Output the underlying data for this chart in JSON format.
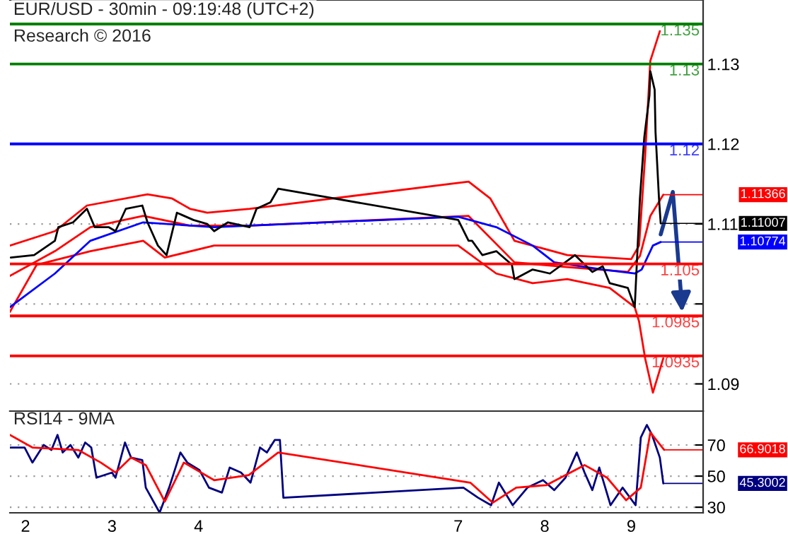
{
  "chart_data": [
    {
      "type": "line",
      "title": "EUR/USD - 30min - 09:19:48 (UTC+2)",
      "annotations": [
        "Research © 2016"
      ],
      "xlim": [
        1.82,
        9.83
      ],
      "xticks": [
        2,
        3,
        4,
        7,
        8,
        9
      ],
      "ylim": [
        1.0866,
        1.138
      ],
      "yticks": [
        1.09,
        {
          "value": 1.1,
          "label": null
        },
        1.11,
        1.12,
        1.13
      ],
      "grid": "y",
      "tick_labels": "y",
      "series": [
        {
          "color": "#ff0000",
          "x": [
            1.82,
            2.34,
            2.71,
            3.41,
            3.69,
            3.9,
            4.1,
            4.59,
            7.12,
            7.37,
            7.65,
            8.26,
            9.0,
            9.09,
            9.16,
            9.22,
            9.33
          ],
          "values": [
            1.1073,
            1.1091,
            1.1123,
            1.1137,
            1.1132,
            1.1119,
            1.1114,
            1.1119,
            1.1153,
            1.1132,
            1.1079,
            1.1061,
            1.1056,
            1.1073,
            1.1185,
            1.1304,
            1.1341
          ]
        },
        {
          "color": "#ff0000",
          "x": [
            1.82,
            2.13,
            2.75,
            3.36,
            3.61,
            4.18,
            7.0,
            7.44,
            7.86,
            8.26,
            8.75,
            9.04,
            9.09,
            9.16,
            9.25,
            9.37
          ],
          "values": [
            1.099,
            1.1049,
            1.1066,
            1.1079,
            1.1058,
            1.1073,
            1.1073,
            1.1038,
            1.1026,
            1.1031,
            1.102,
            1.0996,
            1.0978,
            1.0932,
            1.0889,
            1.0932
          ]
        },
        {
          "color": "#ff0000",
          "x": [
            1.82,
            2.34,
            2.75,
            3.36,
            3.9,
            4.59,
            7.12,
            7.65,
            8.26,
            8.96,
            9.1,
            9.22,
            9.37
          ],
          "values": [
            1.1035,
            1.1066,
            1.1096,
            1.111,
            1.1098,
            1.1098,
            1.111,
            1.1052,
            1.1046,
            1.104,
            1.106,
            1.111,
            1.11366
          ],
          "value_labels": [
            null,
            null,
            null,
            null,
            null,
            null,
            null,
            null,
            null,
            null,
            null,
            null,
            "1.11366"
          ]
        },
        {
          "color": "#0000ff",
          "x": [
            1.82,
            2.34,
            2.75,
            3.36,
            4.18,
            7.0,
            7.44,
            7.86,
            8.11,
            8.67,
            9.04,
            9.12,
            9.25,
            9.34
          ],
          "values": [
            1.0996,
            1.1038,
            1.1079,
            1.1102,
            1.1096,
            1.1109,
            1.1096,
            1.1073,
            1.1052,
            1.1043,
            1.1038,
            1.1043,
            1.1073,
            1.10774
          ],
          "value_labels": [
            null,
            null,
            null,
            null,
            null,
            null,
            null,
            null,
            null,
            null,
            null,
            null,
            null,
            "1.10774"
          ]
        },
        {
          "color": "#000000",
          "x": [
            1.83,
            2.1,
            2.34,
            2.38,
            2.55,
            2.71,
            2.8,
            2.96,
            3.04,
            3.16,
            3.35,
            3.41,
            3.53,
            3.63,
            3.75,
            3.94,
            4.1,
            4.18,
            4.34,
            4.59,
            4.67,
            4.83,
            4.92,
            7.0,
            7.12,
            7.16,
            7.28,
            7.44,
            7.62,
            7.65,
            7.86,
            8.06,
            8.35,
            8.55,
            8.67,
            8.75,
            8.96,
            9.04,
            9.1,
            9.15,
            9.21,
            9.22,
            9.27,
            9.28,
            9.32,
            9.34
          ],
          "values": [
            1.1058,
            1.1061,
            1.1079,
            1.1096,
            1.1102,
            1.1119,
            1.1096,
            1.1096,
            1.1091,
            1.1119,
            1.1123,
            1.1102,
            1.1073,
            1.1061,
            1.1114,
            1.1105,
            1.11,
            1.1091,
            1.1102,
            1.1096,
            1.1119,
            1.1127,
            1.1144,
            1.1105,
            1.1079,
            1.1079,
            1.1061,
            1.1066,
            1.1049,
            1.1031,
            1.1043,
            1.1038,
            1.1061,
            1.104,
            1.1047,
            1.1026,
            1.102,
            1.0996,
            1.1132,
            1.1208,
            1.1261,
            1.1291,
            1.1268,
            1.1215,
            1.1132,
            1.11007
          ],
          "value_labels": [
            null,
            null,
            null,
            null,
            null,
            null,
            null,
            null,
            null,
            null,
            null,
            null,
            null,
            null,
            null,
            null,
            null,
            null,
            null,
            null,
            null,
            null,
            null,
            null,
            null,
            null,
            null,
            null,
            null,
            null,
            null,
            null,
            null,
            null,
            null,
            null,
            null,
            null,
            null,
            null,
            null,
            null,
            null,
            null,
            null,
            "1.11007"
          ]
        }
      ],
      "ref_lines": [
        {
          "axis": "y",
          "value": 1.135,
          "label": "1.135",
          "color": "#008000"
        },
        {
          "axis": "y",
          "value": 1.13,
          "label": "1.13",
          "color": "#008000"
        },
        {
          "axis": "y",
          "value": 1.12,
          "label": "1.12",
          "color": "#0000ff"
        },
        {
          "axis": "y",
          "value": 1.105,
          "label": "1.105",
          "color": "#ff0000"
        },
        {
          "axis": "y",
          "value": 1.0985,
          "label": "1.0985",
          "color": "#ff0000"
        },
        {
          "axis": "y",
          "value": 1.0935,
          "label": "1.0935",
          "color": "#ff0000"
        }
      ]
    },
    {
      "type": "line",
      "title": "RSI14 - 9MA",
      "xlim": [
        1.82,
        9.83
      ],
      "xticks": [
        2,
        3,
        4,
        7,
        8,
        9
      ],
      "ylim": [
        26.4,
        91.8
      ],
      "yticks": [
        30,
        50,
        70
      ],
      "grid": "y",
      "series": [
        {
          "color": "#000080",
          "x": [
            1.82,
            1.99,
            2.08,
            2.21,
            2.3,
            2.37,
            2.43,
            2.52,
            2.61,
            2.69,
            2.76,
            2.82,
            3.0,
            3.04,
            3.15,
            3.22,
            3.35,
            3.39,
            3.55,
            3.66,
            3.79,
            3.87,
            4.01,
            4.12,
            4.27,
            4.36,
            4.49,
            4.6,
            4.71,
            4.79,
            4.88,
            4.94,
            4.98,
            7.06,
            7.23,
            7.38,
            7.47,
            7.63,
            7.8,
            7.98,
            8.11,
            8.24,
            8.37,
            8.46,
            8.55,
            8.63,
            8.76,
            8.9,
            9.05,
            9.11,
            9.18,
            9.24,
            9.33,
            9.37
          ],
          "values": [
            68.4,
            68.4,
            58.7,
            70.0,
            66.8,
            76.5,
            65.2,
            70.0,
            61.9,
            71.6,
            68.4,
            49.0,
            52.3,
            49.0,
            71.6,
            61.9,
            60.3,
            42.6,
            26.5,
            42.6,
            65.2,
            58.7,
            53.9,
            42.6,
            39.4,
            55.5,
            52.3,
            45.8,
            68.4,
            65.2,
            73.2,
            73.2,
            36.1,
            42.6,
            36.1,
            31.3,
            45.8,
            31.3,
            42.6,
            47.4,
            41.0,
            49.0,
            65.2,
            52.3,
            41.0,
            55.5,
            31.3,
            42.6,
            31.3,
            74.8,
            82.9,
            76.5,
            61.9,
            45.3002
          ],
          "value_labels": [
            null,
            null,
            null,
            null,
            null,
            null,
            null,
            null,
            null,
            null,
            null,
            null,
            null,
            null,
            null,
            null,
            null,
            null,
            null,
            null,
            null,
            null,
            null,
            null,
            null,
            null,
            null,
            null,
            null,
            null,
            null,
            null,
            null,
            null,
            null,
            null,
            null,
            null,
            null,
            null,
            null,
            null,
            null,
            null,
            null,
            null,
            null,
            null,
            null,
            null,
            null,
            null,
            null,
            "45.3002"
          ]
        },
        {
          "color": "#ff0000",
          "x": [
            1.82,
            2.08,
            2.61,
            2.87,
            3.04,
            3.22,
            3.39,
            3.61,
            3.83,
            4.18,
            4.58,
            4.92,
            7.14,
            7.4,
            7.67,
            8.02,
            8.46,
            8.72,
            8.94,
            9.11,
            9.22,
            9.38
          ],
          "values": [
            76.5,
            68.4,
            66.8,
            58.7,
            52.3,
            61.9,
            57.1,
            33.6,
            58.7,
            47.4,
            50.6,
            65.2,
            45.8,
            32.9,
            42.6,
            44.2,
            57.1,
            49.0,
            34.5,
            42.6,
            78.1,
            66.9018
          ],
          "value_labels": [
            null,
            null,
            null,
            null,
            null,
            null,
            null,
            null,
            null,
            null,
            null,
            null,
            null,
            null,
            null,
            null,
            null,
            null,
            null,
            null,
            null,
            "66.9018"
          ]
        }
      ]
    }
  ]
}
